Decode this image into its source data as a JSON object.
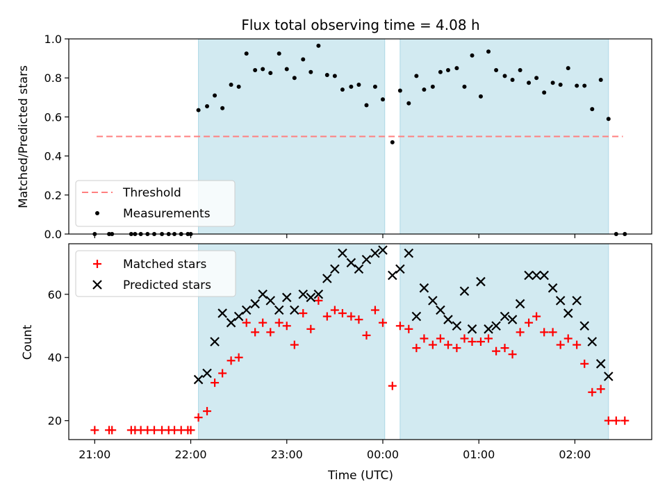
{
  "chart_data": {
    "title": "Flux total observing time = 4.08 h",
    "xlabel": "Time (UTC)",
    "x_ticks": [
      "21:00",
      "22:00",
      "23:00",
      "00:00",
      "01:00",
      "02:00"
    ],
    "x_tick_hours": [
      21,
      22,
      23,
      24,
      25,
      26
    ],
    "shaded_intervals_hours": [
      [
        22.08,
        24.02
      ],
      [
        24.18,
        26.35
      ]
    ],
    "shade_color": "#add8e6",
    "panels": [
      {
        "id": "top",
        "type": "scatter",
        "ylabel": "Matched/Predicted stars",
        "ylim": [
          0,
          1.0
        ],
        "yticks": [
          0.0,
          0.2,
          0.4,
          0.6,
          0.8,
          1.0
        ],
        "ytick_labels": [
          "0.0",
          "0.2",
          "0.4",
          "0.6",
          "0.8",
          "1.0"
        ],
        "legend_position": "lower-left",
        "threshold": {
          "name": "Threshold",
          "value": 0.5,
          "x_range": [
            21.02,
            26.5
          ],
          "color": "#ff7f7f"
        },
        "series": [
          {
            "name": "Measurements",
            "marker": "dot",
            "color": "#000000",
            "x": [
              21.0,
              21.15,
              21.18,
              21.38,
              21.42,
              21.48,
              21.55,
              21.62,
              21.7,
              21.77,
              21.83,
              21.9,
              21.97,
              22.0,
              22.08,
              22.17,
              22.25,
              22.33,
              22.42,
              22.5,
              22.58,
              22.67,
              22.75,
              22.83,
              22.92,
              23.0,
              23.08,
              23.17,
              23.25,
              23.33,
              23.42,
              23.5,
              23.58,
              23.67,
              23.75,
              23.83,
              23.92,
              24.0,
              24.1,
              24.18,
              24.27,
              24.35,
              24.43,
              24.52,
              24.6,
              24.68,
              24.77,
              24.85,
              24.93,
              25.02,
              25.1,
              25.18,
              25.27,
              25.35,
              25.43,
              25.52,
              25.6,
              25.68,
              25.77,
              25.85,
              25.93,
              26.02,
              26.1,
              26.18,
              26.27,
              26.35,
              26.43,
              26.52
            ],
            "y": [
              0.0,
              0.0,
              0.0,
              0.0,
              0.0,
              0.0,
              0.0,
              0.0,
              0.0,
              0.0,
              0.0,
              0.0,
              0.0,
              0.0,
              0.635,
              0.655,
              0.71,
              0.645,
              0.765,
              0.755,
              0.925,
              0.84,
              0.845,
              0.825,
              0.925,
              0.845,
              0.8,
              0.895,
              0.83,
              0.965,
              0.815,
              0.81,
              0.74,
              0.755,
              0.765,
              0.66,
              0.755,
              0.69,
              0.47,
              0.735,
              0.67,
              0.81,
              0.74,
              0.755,
              0.83,
              0.84,
              0.85,
              0.755,
              0.915,
              0.705,
              0.935,
              0.84,
              0.81,
              0.79,
              0.84,
              0.775,
              0.8,
              0.725,
              0.775,
              0.765,
              0.85,
              0.76,
              0.76,
              0.64,
              0.79,
              0.59,
              0.0,
              0.0
            ]
          }
        ]
      },
      {
        "id": "bottom",
        "type": "scatter",
        "ylabel": "Count",
        "ylim": [
          14,
          76
        ],
        "yticks": [
          20,
          40,
          60
        ],
        "ytick_labels": [
          "20",
          "40",
          "60"
        ],
        "legend_position": "upper-left",
        "series": [
          {
            "name": "Matched stars",
            "marker": "plus",
            "color": "#ff0000",
            "x": [
              21.0,
              21.15,
              21.18,
              21.38,
              21.42,
              21.48,
              21.55,
              21.62,
              21.7,
              21.77,
              21.83,
              21.9,
              21.97,
              22.0,
              22.08,
              22.17,
              22.25,
              22.33,
              22.42,
              22.5,
              22.58,
              22.67,
              22.75,
              22.83,
              22.92,
              23.0,
              23.08,
              23.17,
              23.25,
              23.33,
              23.42,
              23.5,
              23.58,
              23.67,
              23.75,
              23.83,
              23.92,
              24.0,
              24.1,
              24.18,
              24.27,
              24.35,
              24.43,
              24.52,
              24.6,
              24.68,
              24.77,
              24.85,
              24.93,
              25.02,
              25.1,
              25.18,
              25.27,
              25.35,
              25.43,
              25.52,
              25.6,
              25.68,
              25.77,
              25.85,
              25.93,
              26.02,
              26.1,
              26.18,
              26.27,
              26.35,
              26.43,
              26.52
            ],
            "y": [
              17,
              17,
              17,
              17,
              17,
              17,
              17,
              17,
              17,
              17,
              17,
              17,
              17,
              17,
              21,
              23,
              32,
              35,
              39,
              40,
              51,
              48,
              51,
              48,
              51,
              50,
              44,
              54,
              49,
              58,
              53,
              55,
              54,
              53,
              52,
              47,
              55,
              51,
              31,
              50,
              49,
              43,
              46,
              44,
              46,
              44,
              43,
              46,
              45,
              45,
              46,
              42,
              43,
              41,
              48,
              51,
              53,
              48,
              48,
              44,
              46,
              44,
              38,
              29,
              30,
              20,
              20,
              20
            ]
          },
          {
            "name": "Predicted stars",
            "marker": "x",
            "color": "#000000",
            "x": [
              22.08,
              22.17,
              22.25,
              22.33,
              22.42,
              22.5,
              22.58,
              22.67,
              22.75,
              22.83,
              22.92,
              23.0,
              23.08,
              23.17,
              23.25,
              23.33,
              23.42,
              23.5,
              23.58,
              23.67,
              23.75,
              23.83,
              23.92,
              24.0,
              24.1,
              24.18,
              24.27,
              24.35,
              24.43,
              24.52,
              24.6,
              24.68,
              24.77,
              24.85,
              24.93,
              25.02,
              25.1,
              25.18,
              25.27,
              25.35,
              25.43,
              25.52,
              25.6,
              25.68,
              25.77,
              25.85,
              25.93,
              26.02,
              26.1,
              26.18,
              26.27,
              26.35
            ],
            "y": [
              33,
              35,
              45,
              54,
              51,
              53,
              55,
              57,
              60,
              58,
              55,
              59,
              55,
              60,
              59,
              60,
              65,
              68,
              73,
              70,
              68,
              71,
              73,
              74,
              66,
              68,
              73,
              53,
              62,
              58,
              55,
              52,
              50,
              61,
              49,
              64,
              49,
              50,
              53,
              52,
              57,
              66,
              66,
              66,
              62,
              58,
              54,
              58,
              50,
              45,
              38,
              34
            ]
          }
        ]
      }
    ]
  }
}
